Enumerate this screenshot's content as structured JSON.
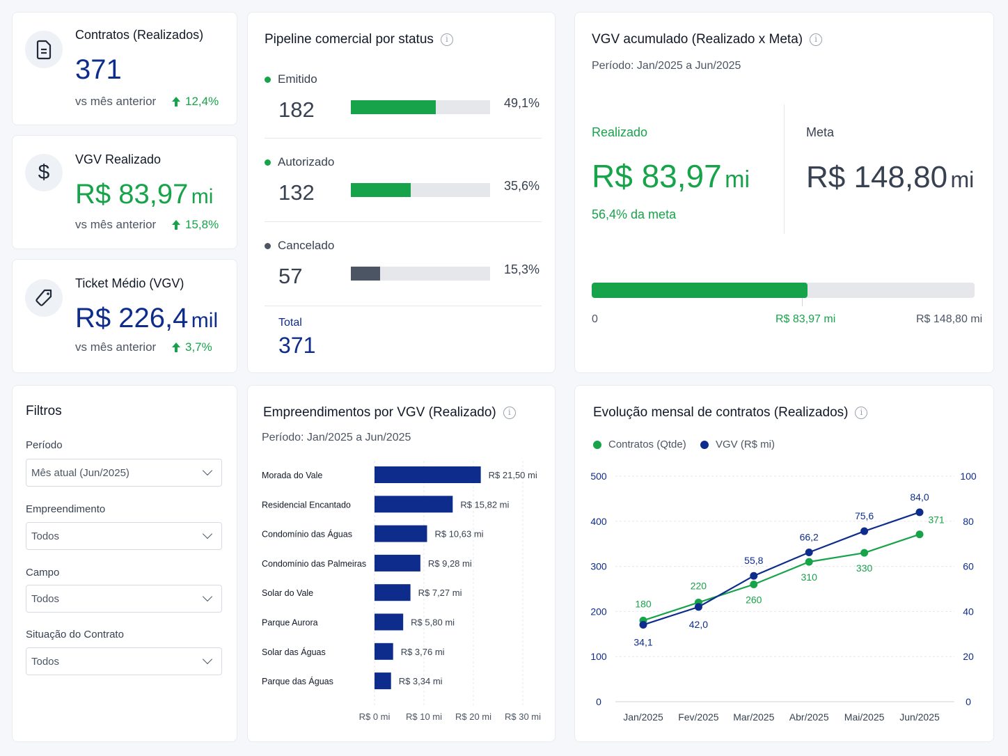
{
  "kpis": {
    "contratos": {
      "title": "Contratos (Realizados)",
      "value": "371",
      "unit": "",
      "compare": "vs mês anterior",
      "delta": "12,4%",
      "icon": "document-icon"
    },
    "vgv": {
      "title": "VGV Realizado",
      "value": "R$ 83,97",
      "unit": "mi",
      "compare": "vs mês anterior",
      "delta": "15,8%",
      "icon": "dollar-icon"
    },
    "ticket": {
      "title": "Ticket Médio (VGV)",
      "value": "R$ 226,4",
      "unit": "mil",
      "compare": "vs mês anterior",
      "delta": "3,7%",
      "icon": "tag-icon"
    }
  },
  "pipeline": {
    "title": "Pipeline comercial por status",
    "items": [
      {
        "label": "Emitido",
        "count": "182",
        "pct": "49,1%",
        "fraction": 0.61,
        "color": "#16a34a"
      },
      {
        "label": "Autorizado",
        "count": "132",
        "pct": "35,6%",
        "fraction": 0.43,
        "color": "#16a34a"
      },
      {
        "label": "Cancelado",
        "count": "57",
        "pct": "15,3%",
        "fraction": 0.21,
        "color": "#4b5563"
      }
    ],
    "total_label": "Total",
    "total_value": "371"
  },
  "vgv_meta": {
    "title": "VGV acumulado (Realizado x Meta)",
    "period": "Período:  Jan/2025 a Jun/2025",
    "realizado_label": "Realizado",
    "realizado_value": "R$ 83,97",
    "realizado_unit": "mi",
    "pct_meta": "56,4% da meta",
    "meta_label": "Meta",
    "meta_value": "R$ 148,80",
    "meta_unit": "mi",
    "progress": 0.564,
    "axis_min": "0",
    "axis_current": "R$ 83,97 mi",
    "axis_max": "R$ 148,80 mi"
  },
  "filters": {
    "title": "Filtros",
    "fields": [
      {
        "label": "Período",
        "value": "Mês atual (Jun/2025)"
      },
      {
        "label": "Empreendimento",
        "value": "Todos"
      },
      {
        "label": "Campo",
        "value": "Todos"
      },
      {
        "label": "Situação do Contrato",
        "value": "Todos"
      }
    ]
  },
  "bar_chart": {
    "title": "Empreendimentos por VGV (Realizado)",
    "period": "Período:  Jan/2025 a Jun/2025"
  },
  "line_chart": {
    "title": "Evolução mensal de contratos (Realizados)",
    "legend_contratos": "Contratos (Qtde)",
    "legend_vgv": "VGV (R$ mi)"
  },
  "colors": {
    "green": "#16a34a",
    "navy": "#0d2c8c",
    "gray": "#4b5563"
  },
  "chart_data": [
    {
      "type": "bar",
      "orientation": "horizontal",
      "categories": [
        "Morada do Vale",
        "Residencial Encantado",
        "Condomínio das Águas",
        "Condomínio das Palmeiras",
        "Solar do Vale",
        "Parque Aurora",
        "Solar das Águas",
        "Parque das Águas"
      ],
      "values": [
        21.5,
        15.82,
        10.63,
        9.28,
        7.27,
        5.8,
        3.76,
        3.34
      ],
      "value_labels": [
        "R$ 21,50 mi",
        "R$ 15,82 mi",
        "R$ 10,63 mi",
        "R$ 9,28 mi",
        "R$ 7,27 mi",
        "R$ 5,80 mi",
        "R$ 3,76 mi",
        "R$ 3,34 mi"
      ],
      "xlim": [
        0,
        30
      ],
      "xticks": [
        "R$ 0 mi",
        "R$ 10 mi",
        "R$ 20 mi",
        "R$ 30 mi"
      ],
      "grid": true
    },
    {
      "type": "line",
      "x": [
        "Jan/2025",
        "Fev/2025",
        "Mar/2025",
        "Abr/2025",
        "Mai/2025",
        "Jun/2025"
      ],
      "series": [
        {
          "name": "Contratos (Qtde)",
          "axis": "left",
          "values": [
            180,
            220,
            260,
            310,
            330,
            371
          ],
          "labels": [
            "180",
            "220",
            "260",
            "310",
            "330",
            "371"
          ],
          "color": "#16a34a"
        },
        {
          "name": "VGV (R$ mi)",
          "axis": "right",
          "values": [
            34.1,
            42.0,
            55.8,
            66.2,
            75.6,
            84.0
          ],
          "labels": [
            "34,1",
            "42,0",
            "55,8",
            "66,2",
            "75,6",
            "84,0"
          ],
          "color": "#0d2c8c"
        }
      ],
      "ylim_left": [
        0,
        500
      ],
      "yticks_left": [
        "0",
        "100",
        "200",
        "300",
        "400",
        "500"
      ],
      "ylim_right": [
        0,
        100
      ],
      "yticks_right": [
        "0",
        "20",
        "40",
        "60",
        "80",
        "100"
      ],
      "grid": true,
      "legend": "top-left"
    }
  ]
}
